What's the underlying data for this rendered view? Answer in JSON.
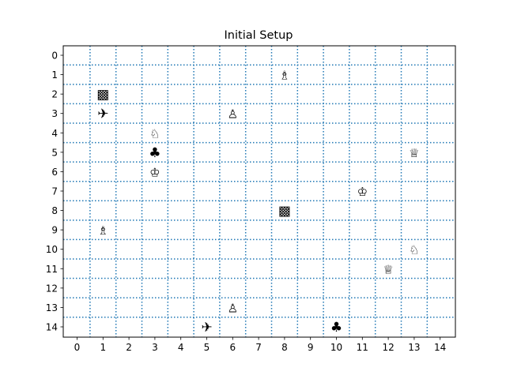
{
  "title": "Initial Setup",
  "board": {
    "columns": 15,
    "rows": 15,
    "x_ticks": [
      "0",
      "1",
      "2",
      "3",
      "4",
      "5",
      "6",
      "7",
      "8",
      "9",
      "10",
      "11",
      "12",
      "13",
      "14"
    ],
    "y_ticks": [
      "0",
      "1",
      "2",
      "3",
      "4",
      "5",
      "6",
      "7",
      "8",
      "9",
      "10",
      "11",
      "12",
      "13",
      "14"
    ],
    "grid": "dotted",
    "grid_color": "#1f77b4",
    "y_axis_inverted": true
  },
  "pieces": [
    {
      "name": "bishop",
      "glyph": "♗",
      "col": 8,
      "row": 1
    },
    {
      "name": "checker",
      "glyph": "▩",
      "col": 1,
      "row": 2
    },
    {
      "name": "pawn",
      "glyph": "♙",
      "col": 6,
      "row": 3
    },
    {
      "name": "airplane",
      "glyph": "✈",
      "col": 1,
      "row": 3
    },
    {
      "name": "knight",
      "glyph": "♘",
      "col": 3,
      "row": 4
    },
    {
      "name": "club",
      "glyph": "♣",
      "col": 3,
      "row": 5
    },
    {
      "name": "queen",
      "glyph": "♕",
      "col": 13,
      "row": 5
    },
    {
      "name": "king",
      "glyph": "♔",
      "col": 3,
      "row": 6
    },
    {
      "name": "king",
      "glyph": "♔",
      "col": 11,
      "row": 7
    },
    {
      "name": "checker",
      "glyph": "▩",
      "col": 8,
      "row": 8
    },
    {
      "name": "bishop",
      "glyph": "♗",
      "col": 1,
      "row": 9
    },
    {
      "name": "knight",
      "glyph": "♘",
      "col": 13,
      "row": 10
    },
    {
      "name": "queen",
      "glyph": "♕",
      "col": 12,
      "row": 11
    },
    {
      "name": "pawn",
      "glyph": "♙",
      "col": 6,
      "row": 13
    },
    {
      "name": "airplane",
      "glyph": "✈",
      "col": 5,
      "row": 14
    },
    {
      "name": "club",
      "glyph": "♣",
      "col": 10,
      "row": 14
    }
  ]
}
